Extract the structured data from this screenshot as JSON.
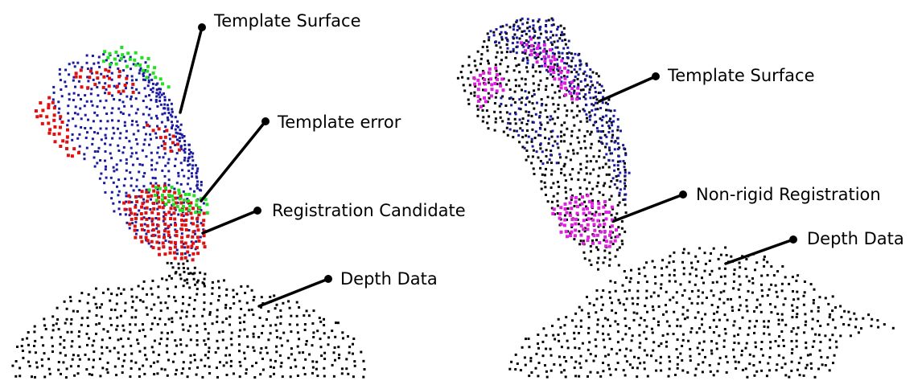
{
  "left_panel": {
    "labels": {
      "template_surface": "Template Surface",
      "template_error": "Template error",
      "registration_candidate": "Registration Candidate",
      "depth_data": "Depth Data"
    }
  },
  "right_panel": {
    "labels": {
      "template_surface": "Template Surface",
      "non_rigid_registration": "Non-rigid Registration",
      "depth_data": "Depth Data"
    }
  },
  "colors": {
    "depth_points": "#000000",
    "template_surface_points": "#1a1aa0",
    "template_error_points": "#e01010",
    "registration_candidate_points": "#22e022",
    "non_rigid_registration_points": "#e020e0",
    "callout": "#000000"
  }
}
